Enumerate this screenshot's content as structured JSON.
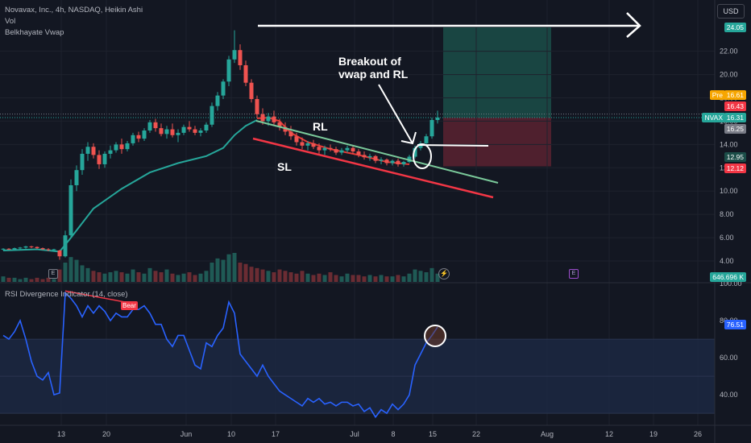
{
  "header": {
    "title": "Novavax, Inc., 4h, NASDAQ, Heikin Ashi",
    "vol": "Vol",
    "vwap": "Belkhayate Vwap",
    "currency": "USD"
  },
  "rsi_panel": {
    "title": "RSI Divergence Indicator (14, close)",
    "bear_label": "Bear",
    "value": "76.51"
  },
  "annotations": {
    "breakout_line1": "Breakout of",
    "breakout_line2": "vwap and RL",
    "rl": "RL",
    "sl": "SL"
  },
  "price_tags": {
    "top": "24.05",
    "pre_label": "Pre",
    "pre_value": "16.61",
    "p1643": "16.43",
    "ticker": "NVAX",
    "ticker_value": "16.31",
    "p1625": "16.25",
    "p1295": "12.95",
    "p1212": "12.12",
    "volume": "646.696 K"
  },
  "event_markers": {
    "earnings_left": "E",
    "earnings_right": "E"
  },
  "colors": {
    "background": "#131722",
    "up": "#26a69a",
    "down": "#ef5350",
    "vwap": "#26a69a",
    "rl_line": "#7ac99a",
    "sl_line": "#f23645",
    "rsi_line": "#2962ff",
    "profit_zone": "#1b4d48",
    "loss_zone": "#5a2230"
  },
  "chart_data": [
    {
      "type": "candlestick",
      "subtype": "Heikin Ashi",
      "y_ticks": [
        4.0,
        6.0,
        8.0,
        10.0,
        12.0,
        14.0,
        16.0,
        18.0,
        20.0,
        22.0
      ],
      "ylim": [
        3.0,
        24.5
      ],
      "x_ticks": [
        "13",
        "20",
        "Jun",
        "10",
        "17",
        "Jul",
        "8",
        "15",
        "22",
        "Aug",
        "12",
        "19",
        "26"
      ],
      "candles": [
        [
          5.0,
          5.1,
          4.9,
          5.05
        ],
        [
          5.05,
          5.1,
          4.95,
          5.0
        ],
        [
          5.0,
          5.15,
          4.95,
          5.1
        ],
        [
          5.1,
          5.2,
          5.0,
          5.15
        ],
        [
          5.15,
          5.3,
          5.05,
          5.25
        ],
        [
          5.25,
          5.3,
          5.1,
          5.2
        ],
        [
          5.2,
          5.25,
          5.05,
          5.1
        ],
        [
          5.1,
          5.15,
          4.95,
          5.0
        ],
        [
          5.0,
          5.1,
          4.85,
          4.95
        ],
        [
          4.95,
          5.05,
          4.85,
          5.0
        ],
        [
          4.9,
          4.95,
          4.1,
          4.4
        ],
        [
          4.4,
          6.6,
          4.3,
          6.2
        ],
        [
          6.2,
          11.0,
          6.0,
          10.5
        ],
        [
          10.5,
          12.2,
          10.0,
          11.8
        ],
        [
          11.8,
          13.6,
          11.4,
          13.2
        ],
        [
          13.2,
          14.2,
          12.6,
          13.8
        ],
        [
          13.8,
          14.1,
          12.8,
          13.1
        ],
        [
          13.1,
          13.5,
          11.9,
          12.3
        ],
        [
          12.3,
          13.4,
          12.0,
          13.2
        ],
        [
          13.2,
          13.9,
          12.8,
          13.5
        ],
        [
          13.5,
          14.2,
          13.3,
          14.0
        ],
        [
          14.0,
          14.5,
          13.2,
          13.6
        ],
        [
          13.6,
          14.3,
          13.4,
          14.1
        ],
        [
          14.1,
          15.0,
          13.9,
          14.8
        ],
        [
          14.8,
          15.1,
          14.2,
          14.5
        ],
        [
          14.5,
          15.4,
          14.3,
          15.2
        ],
        [
          15.2,
          16.1,
          15.0,
          15.9
        ],
        [
          15.9,
          16.2,
          15.1,
          15.4
        ],
        [
          15.4,
          15.8,
          14.7,
          14.9
        ],
        [
          14.9,
          15.6,
          14.5,
          15.3
        ],
        [
          15.3,
          15.8,
          14.6,
          14.8
        ],
        [
          14.8,
          15.3,
          14.2,
          15.0
        ],
        [
          15.0,
          15.7,
          14.8,
          15.5
        ],
        [
          15.5,
          16.0,
          15.1,
          15.3
        ],
        [
          15.3,
          15.6,
          14.8,
          15.0
        ],
        [
          15.0,
          15.4,
          14.7,
          15.2
        ],
        [
          15.2,
          15.9,
          15.0,
          15.7
        ],
        [
          15.7,
          17.6,
          15.5,
          17.3
        ],
        [
          17.3,
          18.5,
          16.9,
          18.2
        ],
        [
          18.2,
          19.6,
          17.9,
          19.4
        ],
        [
          19.4,
          21.6,
          19.0,
          21.3
        ],
        [
          21.3,
          23.8,
          21.0,
          22.1
        ],
        [
          22.1,
          22.6,
          20.4,
          20.8
        ],
        [
          20.8,
          21.2,
          19.0,
          19.3
        ],
        [
          19.3,
          19.6,
          17.6,
          17.9
        ],
        [
          17.9,
          18.2,
          16.3,
          16.6
        ],
        [
          16.6,
          17.1,
          15.7,
          16.0
        ],
        [
          16.0,
          16.7,
          15.6,
          16.4
        ],
        [
          16.4,
          16.9,
          15.7,
          15.9
        ],
        [
          15.9,
          16.2,
          15.2,
          15.5
        ],
        [
          15.5,
          15.9,
          14.8,
          15.1
        ],
        [
          15.1,
          15.6,
          14.4,
          14.7
        ],
        [
          14.7,
          15.0,
          13.9,
          14.2
        ],
        [
          14.2,
          14.6,
          13.6,
          13.9
        ],
        [
          13.9,
          14.3,
          13.5,
          14.1
        ],
        [
          14.1,
          14.4,
          13.6,
          13.8
        ],
        [
          13.8,
          14.1,
          13.2,
          13.5
        ],
        [
          13.5,
          13.9,
          13.1,
          13.7
        ],
        [
          13.7,
          14.0,
          13.4,
          13.6
        ],
        [
          13.6,
          13.8,
          13.1,
          13.3
        ],
        [
          13.3,
          13.7,
          13.1,
          13.5
        ],
        [
          13.5,
          13.9,
          13.3,
          13.7
        ],
        [
          13.7,
          13.9,
          13.2,
          13.4
        ],
        [
          13.4,
          13.6,
          12.9,
          13.1
        ],
        [
          13.1,
          13.4,
          12.7,
          12.9
        ],
        [
          12.9,
          13.2,
          12.6,
          13.0
        ],
        [
          13.0,
          13.1,
          12.4,
          12.6
        ],
        [
          12.6,
          12.9,
          12.3,
          12.7
        ],
        [
          12.7,
          12.8,
          12.2,
          12.4
        ],
        [
          12.4,
          12.7,
          12.2,
          12.6
        ],
        [
          12.6,
          12.8,
          12.1,
          12.3
        ],
        [
          12.3,
          12.6,
          12.1,
          12.5
        ],
        [
          12.5,
          13.1,
          12.4,
          12.95
        ],
        [
          12.95,
          13.9,
          12.8,
          13.7
        ],
        [
          13.7,
          14.3,
          13.5,
          14.1
        ],
        [
          14.1,
          14.9,
          13.9,
          14.7
        ],
        [
          14.7,
          16.3,
          14.5,
          16.1
        ],
        [
          16.1,
          16.9,
          15.8,
          16.31
        ]
      ],
      "volume": [
        4,
        3,
        3,
        2,
        3,
        2,
        3,
        2,
        3,
        2,
        9,
        14,
        18,
        16,
        12,
        10,
        8,
        7,
        6,
        7,
        8,
        7,
        6,
        9,
        7,
        6,
        10,
        8,
        7,
        9,
        6,
        5,
        6,
        7,
        5,
        6,
        8,
        14,
        17,
        16,
        20,
        21,
        14,
        13,
        11,
        10,
        9,
        8,
        7,
        9,
        8,
        7,
        6,
        8,
        6,
        5,
        6,
        5,
        7,
        5,
        4,
        6,
        5,
        5,
        4,
        5,
        4,
        5,
        4,
        4,
        5,
        4,
        6,
        9,
        8,
        7,
        10,
        6
      ],
      "vwap": [
        [
          0,
          4.9
        ],
        [
          6,
          5.0
        ],
        [
          10,
          4.8
        ],
        [
          12,
          6.0
        ],
        [
          16,
          8.5
        ],
        [
          21,
          10.2
        ],
        [
          26,
          11.6
        ],
        [
          31,
          12.4
        ],
        [
          36,
          13.0
        ],
        [
          39,
          13.7
        ],
        [
          41,
          14.8
        ],
        [
          43,
          15.6
        ],
        [
          45,
          16.1
        ]
      ],
      "vwap_red": [
        [
          45,
          16.25
        ],
        [
          47,
          16.3
        ],
        [
          49,
          16.0
        ],
        [
          51,
          15.0
        ],
        [
          54,
          14.2
        ],
        [
          58,
          13.6
        ],
        [
          63,
          13.1
        ],
        [
          68,
          12.5
        ],
        [
          72,
          12.3
        ]
      ],
      "trade_setup": {
        "entry": 16.31,
        "target": 24.05,
        "stop": 12.12
      }
    },
    {
      "type": "line",
      "name": "RSI Divergence Indicator (14, close)",
      "y_ticks": [
        40.0,
        60.0,
        80.0,
        100.0
      ],
      "ylim": [
        24,
        100
      ],
      "bands": [
        50,
        70
      ],
      "values": [
        72,
        70,
        74,
        80,
        70,
        58,
        50,
        48,
        52,
        40,
        41,
        95,
        92,
        88,
        82,
        88,
        84,
        88,
        85,
        80,
        84,
        82,
        82,
        86,
        86,
        88,
        84,
        78,
        78,
        70,
        66,
        72,
        72,
        64,
        56,
        54,
        68,
        66,
        72,
        76,
        90,
        84,
        62,
        58,
        54,
        50,
        56,
        50,
        46,
        42,
        40,
        38,
        36,
        34,
        38,
        36,
        38,
        35,
        36,
        34,
        36,
        36,
        34,
        35,
        31,
        33,
        28,
        32,
        30,
        35,
        32,
        35,
        40,
        56,
        62,
        68,
        72,
        76.51
      ]
    }
  ]
}
